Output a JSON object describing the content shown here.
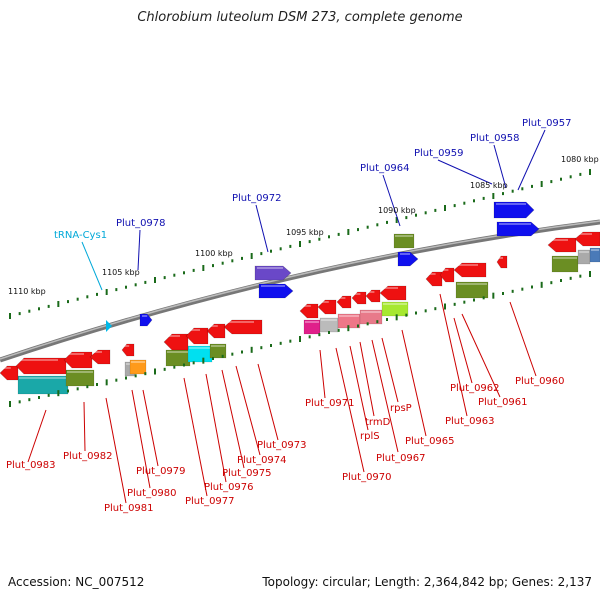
{
  "title": "Chlorobium luteolum DSM 273, complete genome",
  "accession": "Accession: NC_007512",
  "summary": "Topology: circular; Length: 2,364,842 bp; Genes: 2,137",
  "colors": {
    "forward_label": "#1010b0",
    "reverse_label": "#cc0000",
    "trna_label": "#00a8d8",
    "backbone": "#777777",
    "tick": "#1a6a1a"
  },
  "kbp_ticks": [
    "1110 kbp",
    "1105 kbp",
    "1100 kbp",
    "1095 kbp",
    "1090 kbp",
    "1085 kbp",
    "1080 kbp"
  ],
  "forward_labels": [
    "tRNA-Cys1",
    "Plut_0978",
    "Plut_0972",
    "Plut_0964",
    "Plut_0959",
    "Plut_0958",
    "Plut_0957"
  ],
  "reverse_labels": [
    "Plut_0983",
    "Plut_0982",
    "Plut_0981",
    "Plut_0980",
    "Plut_0979",
    "Plut_0977",
    "Plut_0976",
    "Plut_0975",
    "Plut_0974",
    "Plut_0973",
    "Plut_0971",
    "Plut_0970",
    "rplS",
    "trmD",
    "Plut_0967",
    "rpsP",
    "Plut_0965",
    "Plut_0963",
    "Plut_0962",
    "Plut_0961",
    "Plut_0960"
  ]
}
